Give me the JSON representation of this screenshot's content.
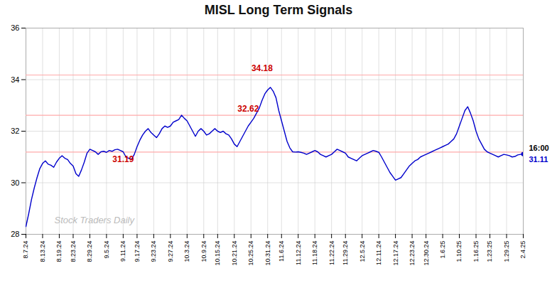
{
  "chart_data": {
    "type": "line",
    "title": "MISL Long Term Signals",
    "categories": [
      "8.7.24",
      null,
      null,
      null,
      null,
      null,
      "8.13.24",
      null,
      null,
      null,
      null,
      null,
      "8.19.24",
      null,
      null,
      null,
      null,
      "8.23.24",
      null,
      null,
      null,
      null,
      null,
      "8.29.24",
      null,
      null,
      null,
      null,
      null,
      "9.5.24",
      null,
      null,
      null,
      null,
      null,
      "9.11.24",
      null,
      null,
      null,
      null,
      "9.17.24",
      null,
      null,
      null,
      null,
      null,
      "9.23.24",
      null,
      null,
      null,
      null,
      null,
      "9.27.24",
      null,
      null,
      null,
      null,
      null,
      "10.3.24",
      null,
      null,
      null,
      null,
      null,
      "10.9.24",
      null,
      null,
      null,
      null,
      "10.15.24",
      null,
      null,
      null,
      null,
      null,
      "10.21.24",
      null,
      null,
      null,
      null,
      null,
      "10.25.24",
      null,
      null,
      null,
      null,
      null,
      "10.31.24",
      null,
      null,
      null,
      null,
      "11.6.24",
      null,
      null,
      null,
      null,
      null,
      "11.12.24",
      null,
      null,
      null,
      null,
      null,
      "11.18.24",
      null,
      null,
      null,
      null,
      null,
      "11.22.24",
      null,
      null,
      null,
      null,
      "11.29.24",
      null,
      null,
      null,
      null,
      null,
      "12.5.24",
      null,
      null,
      null,
      null,
      null,
      "12.11.24",
      null,
      null,
      null,
      null,
      null,
      "12.17.24",
      null,
      null,
      null,
      null,
      null,
      "12.23.24",
      null,
      null,
      null,
      null,
      "12.30.24",
      null,
      null,
      null,
      null,
      null,
      "1.6.25",
      null,
      null,
      null,
      null,
      null,
      "1.10.25",
      null,
      null,
      null,
      null,
      null,
      "1.16.25",
      null,
      null,
      null,
      null,
      "1.23.25",
      null,
      null,
      null,
      null,
      null,
      "1.29.25",
      null,
      null,
      null,
      null,
      null,
      "2.4.25"
    ],
    "values": [
      28.3,
      28.8,
      29.35,
      29.8,
      30.2,
      30.55,
      30.75,
      30.85,
      30.72,
      30.68,
      30.6,
      30.8,
      30.95,
      31.05,
      30.95,
      30.9,
      30.75,
      30.65,
      30.35,
      30.25,
      30.5,
      30.8,
      31.15,
      31.3,
      31.25,
      31.2,
      31.1,
      31.2,
      31.22,
      31.18,
      31.25,
      31.22,
      31.28,
      31.3,
      31.25,
      31.2,
      31.0,
      30.95,
      30.9,
      31.1,
      31.4,
      31.65,
      31.85,
      32.0,
      32.1,
      31.95,
      31.85,
      31.75,
      31.9,
      32.1,
      32.2,
      32.15,
      32.2,
      32.35,
      32.4,
      32.45,
      32.62,
      32.5,
      32.4,
      32.2,
      32.0,
      31.8,
      32.0,
      32.1,
      32.0,
      31.85,
      31.9,
      32.0,
      32.1,
      32.0,
      31.95,
      32.0,
      31.9,
      31.85,
      31.7,
      31.5,
      31.4,
      31.6,
      31.8,
      32.0,
      32.2,
      32.35,
      32.5,
      32.7,
      32.9,
      33.2,
      33.45,
      33.6,
      33.7,
      33.55,
      33.3,
      32.8,
      32.4,
      32.0,
      31.6,
      31.35,
      31.2,
      31.19,
      31.2,
      31.18,
      31.15,
      31.1,
      31.15,
      31.2,
      31.25,
      31.2,
      31.1,
      31.05,
      31.0,
      31.05,
      31.1,
      31.2,
      31.3,
      31.25,
      31.2,
      31.15,
      31.0,
      30.95,
      30.9,
      30.85,
      30.95,
      31.05,
      31.1,
      31.15,
      31.2,
      31.25,
      31.22,
      31.18,
      31.0,
      30.8,
      30.6,
      30.4,
      30.25,
      30.1,
      30.15,
      30.2,
      30.35,
      30.5,
      30.65,
      30.75,
      30.85,
      30.9,
      31.0,
      31.05,
      31.1,
      31.15,
      31.2,
      31.25,
      31.3,
      31.35,
      31.4,
      31.45,
      31.5,
      31.6,
      31.7,
      31.9,
      32.2,
      32.5,
      32.8,
      32.95,
      32.7,
      32.4,
      32.0,
      31.7,
      31.5,
      31.3,
      31.2,
      31.15,
      31.1,
      31.05,
      31.0,
      31.05,
      31.1,
      31.08,
      31.05,
      31.0,
      31.02,
      31.08,
      31.1,
      31.11
    ],
    "color": "#0000cc",
    "ylim": [
      28,
      36
    ],
    "yticks": [
      28,
      30,
      32,
      34,
      36
    ],
    "grid": true,
    "hlines": [
      31.19,
      32.62,
      34.18
    ],
    "hline_color": "#ffaaaa",
    "annotations": [
      {
        "text": "34.18",
        "x": 85,
        "y": 34.18,
        "position": "above"
      },
      {
        "text": "32.62",
        "x": 80,
        "y": 32.62,
        "position": "above"
      },
      {
        "text": "31.19",
        "x": 35,
        "y": 31.19,
        "position": "below"
      }
    ],
    "annotation_color": "#cc0000",
    "end_labels": [
      {
        "text": "16:00",
        "color": "#000000",
        "position": "above"
      },
      {
        "text": "31.11",
        "color": "#0000cc",
        "position": "below"
      }
    ],
    "watermark": "Stock Traders Daily",
    "watermark_color": "#bbbbbb"
  }
}
